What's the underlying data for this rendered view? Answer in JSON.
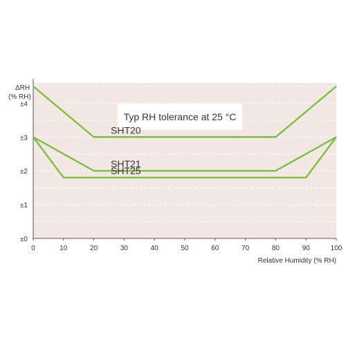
{
  "chart_data": {
    "type": "line",
    "title": "Typ RH tolerance at 25 °C",
    "ylabel_line1": "ΔRH",
    "ylabel_line2": "(% RH)",
    "xlabel": "Relative Humidity (% RH)",
    "xlim": [
      0,
      100
    ],
    "ylim": [
      0,
      4.6
    ],
    "x_ticks": [
      "0",
      "10",
      "20",
      "30",
      "40",
      "50",
      "60",
      "70",
      "80",
      "90",
      "100"
    ],
    "y_ticks": [
      {
        "value": 0,
        "label": "±0"
      },
      {
        "value": 1,
        "label": "±1"
      },
      {
        "value": 2,
        "label": "±2"
      },
      {
        "value": 3,
        "label": "±3"
      },
      {
        "value": 4,
        "label": "±4"
      }
    ],
    "minor_gridlines": [
      0.5,
      1.5,
      2.5,
      3.5,
      4.5
    ],
    "grid": true,
    "legend": "none",
    "colors": {
      "series": "#7cbf3f",
      "grid": "#e6c5bd",
      "axis": "#555555",
      "text": "#333333",
      "background": "#f3e7e3",
      "title_box": "#ffffff"
    },
    "series": [
      {
        "name": "SHT20",
        "x": [
          0,
          20,
          80,
          100
        ],
        "y": [
          4.5,
          3.0,
          3.0,
          4.5
        ]
      },
      {
        "name": "SHT21",
        "x": [
          0,
          20,
          80,
          100
        ],
        "y": [
          3.0,
          2.0,
          2.0,
          3.0
        ]
      },
      {
        "name": "SHT25",
        "x": [
          0,
          10,
          90,
          100
        ],
        "y": [
          3.0,
          1.8,
          1.8,
          3.0
        ]
      }
    ]
  }
}
